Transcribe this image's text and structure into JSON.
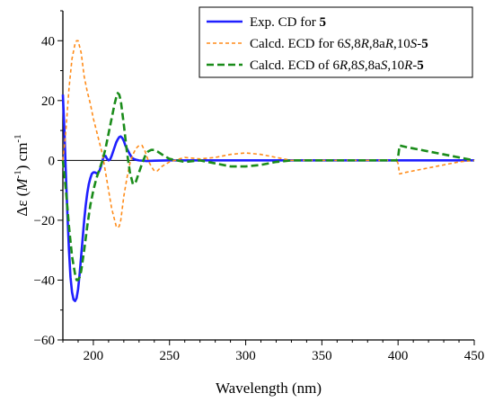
{
  "chart_data": {
    "type": "line",
    "xlabel": "Wavelength (nm)",
    "ylabel_parts": [
      "Δε (",
      "M",
      "-1",
      ") cm",
      "-1"
    ],
    "xlim": [
      180,
      450
    ],
    "ylim": [
      -60,
      50
    ],
    "x_ticks": [
      200,
      250,
      300,
      350,
      400,
      450
    ],
    "y_ticks": [
      -60,
      -40,
      -20,
      0,
      20,
      40
    ],
    "legend": "top-right",
    "series": [
      {
        "name_parts": [
          [
            "Exp. CD for ",
            "normal"
          ],
          [
            "5",
            "bold"
          ]
        ],
        "color": "#1f1fff",
        "style": "solid",
        "x": [
          180,
          181,
          182,
          183,
          184,
          185,
          186,
          187,
          188,
          189,
          190,
          191,
          192,
          193,
          194,
          195,
          196,
          197,
          198,
          199,
          200,
          201,
          202,
          203,
          204,
          205,
          206,
          207,
          208,
          209,
          210,
          211,
          212,
          213,
          214,
          215,
          216,
          217,
          218,
          219,
          220,
          221,
          222,
          223,
          224,
          225,
          226,
          228,
          230,
          235,
          240,
          250,
          260,
          280,
          300,
          350,
          400,
          450
        ],
        "y": [
          22,
          10,
          -5,
          -18,
          -30,
          -39,
          -44,
          -46.5,
          -47,
          -46,
          -43,
          -38,
          -32,
          -26,
          -20,
          -15,
          -11,
          -8,
          -6,
          -4.5,
          -4,
          -4,
          -4.3,
          -4.2,
          -3.5,
          -2,
          0,
          1.5,
          1.5,
          0.5,
          0,
          0.3,
          1.5,
          3,
          4.5,
          6,
          7,
          7.8,
          8,
          7.5,
          6.5,
          5,
          4,
          3,
          2,
          1.2,
          0.6,
          0.2,
          0,
          -0.2,
          -0.1,
          0,
          0,
          0,
          0,
          0,
          0,
          0
        ]
      },
      {
        "name_parts": [
          [
            "Calcd. ECD for 6",
            "normal"
          ],
          [
            "S",
            "italic"
          ],
          [
            ",8",
            "normal"
          ],
          [
            "R",
            "italic"
          ],
          [
            ",8a",
            "normal"
          ],
          [
            "R",
            "italic"
          ],
          [
            ",10",
            "normal"
          ],
          [
            "S",
            "italic"
          ],
          [
            "-",
            "normal"
          ],
          [
            "5",
            "bold"
          ]
        ],
        "color": "#ff8c1a",
        "style": "short-dash",
        "x": [
          180,
          182,
          184,
          186,
          188,
          189,
          190,
          192,
          194,
          196,
          198,
          200,
          202,
          204,
          206,
          208,
          210,
          212,
          214,
          215,
          216,
          217,
          218,
          219,
          220,
          222,
          224,
          226,
          228,
          230,
          232,
          234,
          236,
          238,
          240,
          242,
          245,
          250,
          260,
          270,
          280,
          290,
          300,
          310,
          320,
          330,
          350,
          370,
          390,
          399,
          400,
          401,
          405,
          410,
          420,
          430,
          440,
          450
        ],
        "y": [
          0,
          10,
          24,
          34,
          39,
          40,
          40,
          36,
          28,
          23,
          19,
          14,
          10,
          6,
          2,
          -4,
          -10,
          -16,
          -20,
          -22,
          -22.5,
          -22,
          -20,
          -16,
          -12,
          -6,
          -1,
          2,
          4,
          5,
          5,
          3,
          0,
          -2,
          -3.5,
          -3.5,
          -2,
          -0.5,
          1,
          0.5,
          1,
          2,
          2.5,
          2,
          1,
          0,
          0,
          0,
          0,
          0,
          -1,
          -4.5,
          -4,
          -3.5,
          -2.5,
          -1.5,
          -0.5,
          0
        ]
      },
      {
        "name_parts": [
          [
            "Calcd. ECD of  6",
            "normal"
          ],
          [
            "R",
            "italic"
          ],
          [
            ",8",
            "normal"
          ],
          [
            "S",
            "italic"
          ],
          [
            ",8a",
            "normal"
          ],
          [
            "S",
            "italic"
          ],
          [
            ",10",
            "normal"
          ],
          [
            "R",
            "italic"
          ],
          [
            "-",
            "normal"
          ],
          [
            "5",
            "bold"
          ]
        ],
        "color": "#1a8c1a",
        "style": "long-dash",
        "x": [
          180,
          182,
          184,
          186,
          188,
          189,
          190,
          191,
          192,
          194,
          196,
          198,
          200,
          202,
          204,
          206,
          208,
          210,
          212,
          214,
          215,
          216,
          217,
          218,
          220,
          222,
          224,
          226,
          228,
          230,
          232,
          234,
          236,
          238,
          240,
          242,
          245,
          250,
          260,
          270,
          280,
          290,
          300,
          310,
          320,
          330,
          350,
          370,
          390,
          399,
          400,
          401,
          405,
          410,
          420,
          430,
          440,
          450
        ],
        "y": [
          0,
          -10,
          -22,
          -32,
          -38,
          -40,
          -40,
          -39,
          -37,
          -30,
          -22,
          -15,
          -10,
          -6,
          -3,
          0,
          4,
          9,
          14,
          19,
          21,
          22.5,
          22,
          20,
          12,
          3,
          -4,
          -8,
          -7,
          -4,
          -1,
          1.5,
          3,
          3.5,
          3.5,
          3,
          2,
          0.5,
          -0.5,
          0,
          -1,
          -2,
          -2,
          -1.5,
          -0.5,
          0,
          0,
          0,
          0,
          0,
          1,
          5,
          4.5,
          4,
          3,
          2,
          1,
          0
        ]
      }
    ]
  }
}
